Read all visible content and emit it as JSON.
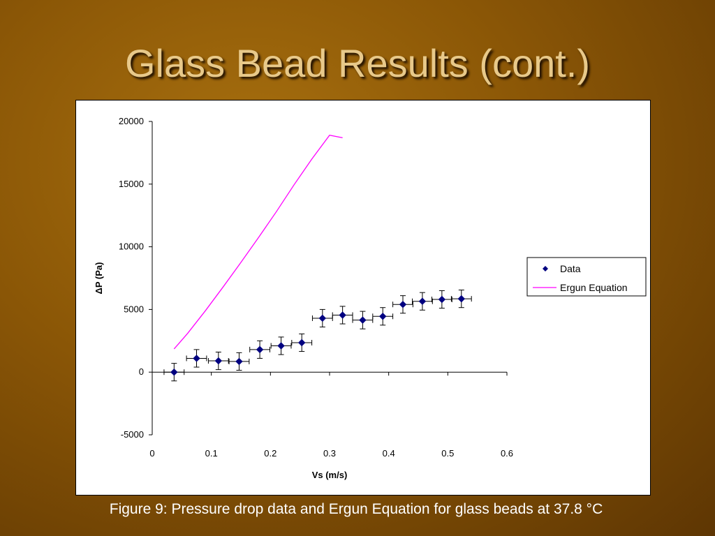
{
  "slide": {
    "title": "Glass Bead Results (cont.)",
    "caption": "Figure 9: Pressure drop data and Ergun Equation for glass beads at 37.8 °C"
  },
  "colors": {
    "background": "#8a5606",
    "title": "#e8c98a",
    "data_series": "#000080",
    "ergun_series": "#ff00ff"
  },
  "chart_data": {
    "type": "scatter",
    "xlabel": "Vs (m/s)",
    "ylabel": "ΔP (Pa)",
    "xlim": [
      0,
      0.6
    ],
    "ylim": [
      -5000,
      20000
    ],
    "xticks": [
      0,
      0.1,
      0.2,
      0.3,
      0.4,
      0.5,
      0.6
    ],
    "xtick_labels": [
      "0",
      "0.1",
      "0.2",
      "0.3",
      "0.4",
      "0.5",
      "0.6"
    ],
    "yticks": [
      -5000,
      0,
      5000,
      10000,
      15000,
      20000
    ],
    "ytick_labels": [
      "-5000",
      "0",
      "5000",
      "10000",
      "15000",
      "20000"
    ],
    "grid": false,
    "legend_position": "right",
    "series": [
      {
        "name": "Data",
        "kind": "markers",
        "color": "#000080",
        "x": [
          0.037,
          0.075,
          0.112,
          0.147,
          0.182,
          0.218,
          0.253,
          0.288,
          0.322,
          0.356,
          0.39,
          0.424,
          0.457,
          0.49,
          0.523
        ],
        "y": [
          0,
          1100,
          900,
          850,
          1800,
          2100,
          2350,
          4300,
          4550,
          4150,
          4450,
          5400,
          5650,
          5800,
          5850
        ],
        "x_err": [
          0.017,
          0.017,
          0.017,
          0.017,
          0.017,
          0.017,
          0.017,
          0.017,
          0.017,
          0.017,
          0.017,
          0.017,
          0.017,
          0.017,
          0.017
        ],
        "y_err": [
          700,
          700,
          700,
          700,
          700,
          700,
          700,
          700,
          700,
          700,
          700,
          700,
          700,
          700,
          700
        ]
      },
      {
        "name": "Ergun Equation",
        "kind": "line",
        "color": "#ff00ff",
        "x": [
          0.037,
          0.06,
          0.09,
          0.12,
          0.15,
          0.18,
          0.21,
          0.24,
          0.27,
          0.3,
          0.322
        ],
        "y": [
          1850,
          3100,
          4900,
          6800,
          8750,
          10750,
          12800,
          14950,
          17000,
          18900,
          18700
        ]
      }
    ]
  }
}
